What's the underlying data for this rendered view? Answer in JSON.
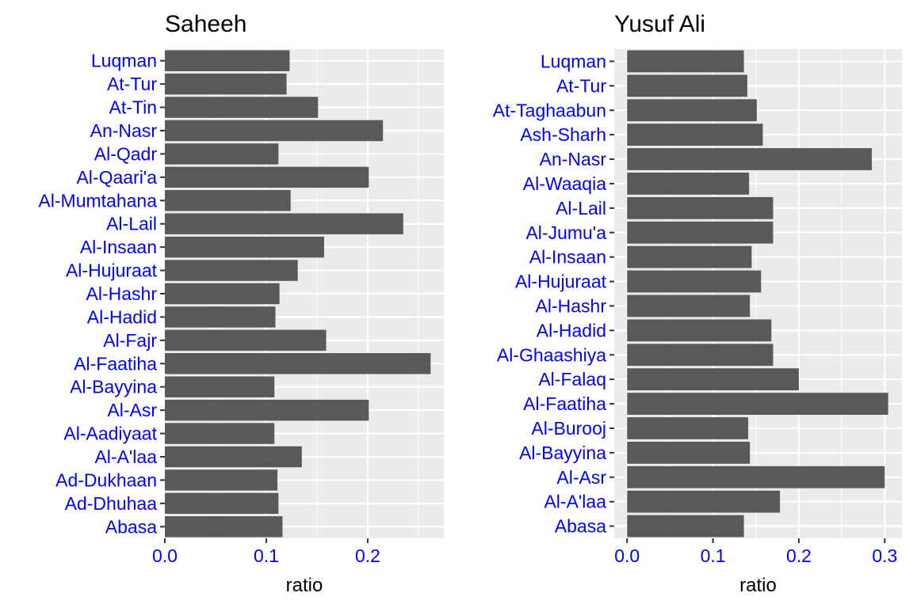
{
  "chart_data": [
    {
      "type": "bar",
      "orientation": "horizontal",
      "title": "Saheeh",
      "xlabel": "ratio",
      "ylabel": "",
      "xlim": [
        0,
        0.275
      ],
      "xticks": [
        0.0,
        0.1,
        0.2
      ],
      "xtick_labels": [
        "0.0",
        "0.1",
        "0.2"
      ],
      "grid": true,
      "colors": {
        "bar": "#595959",
        "panel": "#ebebeb",
        "grid": "#ffffff",
        "labels": "#0000ff"
      },
      "categories": [
        "Luqman",
        "At-Tur",
        "At-Tin",
        "An-Nasr",
        "Al-Qadr",
        "Al-Qaari'a",
        "Al-Mumtahana",
        "Al-Lail",
        "Al-Insaan",
        "Al-Hujuraat",
        "Al-Hashr",
        "Al-Hadid",
        "Al-Fajr",
        "Al-Faatiha",
        "Al-Bayyina",
        "Al-Asr",
        "Al-Aadiyaat",
        "Al-A'laa",
        "Ad-Dukhaan",
        "Ad-Dhuhaa",
        "Abasa"
      ],
      "values": [
        0.123,
        0.12,
        0.151,
        0.215,
        0.112,
        0.201,
        0.124,
        0.235,
        0.157,
        0.131,
        0.113,
        0.109,
        0.159,
        0.262,
        0.108,
        0.201,
        0.108,
        0.135,
        0.111,
        0.112,
        0.116
      ]
    },
    {
      "type": "bar",
      "orientation": "horizontal",
      "title": "Yusuf Ali",
      "xlabel": "ratio",
      "ylabel": "",
      "xlim": [
        -0.015,
        0.32
      ],
      "xticks": [
        0.0,
        0.1,
        0.2,
        0.3
      ],
      "xtick_labels": [
        "0.0",
        "0.1",
        "0.2",
        "0.3"
      ],
      "grid": true,
      "colors": {
        "bar": "#595959",
        "panel": "#ebebeb",
        "grid": "#ffffff",
        "labels": "#0000ff"
      },
      "categories": [
        "Luqman",
        "At-Tur",
        "At-Taghaabun",
        "Ash-Sharh",
        "An-Nasr",
        "Al-Waaqia",
        "Al-Lail",
        "Al-Jumu'a",
        "Al-Insaan",
        "Al-Hujuraat",
        "Al-Hashr",
        "Al-Hadid",
        "Al-Ghaashiya",
        "Al-Falaq",
        "Al-Faatiha",
        "Al-Burooj",
        "Al-Bayyina",
        "Al-Asr",
        "Al-A'laa",
        "Abasa"
      ],
      "values": [
        0.136,
        0.14,
        0.151,
        0.158,
        0.285,
        0.142,
        0.17,
        0.17,
        0.145,
        0.156,
        0.143,
        0.168,
        0.17,
        0.2,
        0.304,
        0.141,
        0.143,
        0.3,
        0.178,
        0.136
      ]
    }
  ]
}
